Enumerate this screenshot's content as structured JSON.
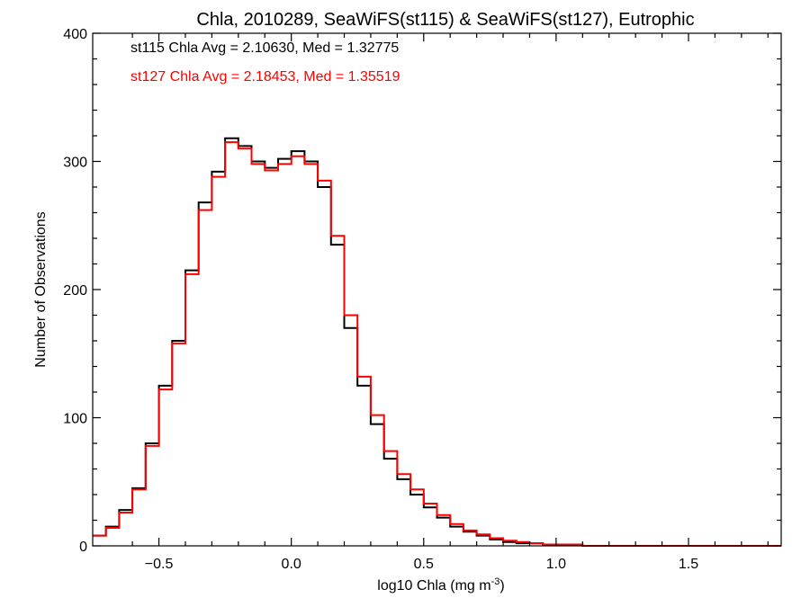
{
  "chart_data": {
    "type": "line",
    "step": true,
    "title": "Chla, 2010289, SeaWiFS(st115) & SeaWiFS(st127), Eutrophic",
    "xlabel": {
      "main": "log10 Chla (mg m",
      "sup": "-3",
      "close": ")"
    },
    "ylabel": "Number of Observations",
    "xlim": [
      -0.75,
      1.85
    ],
    "ylim": [
      0,
      400
    ],
    "x_ticks": [
      {
        "v": -0.5,
        "label": "−0.5"
      },
      {
        "v": 0.0,
        "label": "0.0"
      },
      {
        "v": 0.5,
        "label": "0.5"
      },
      {
        "v": 1.0,
        "label": "1.0"
      },
      {
        "v": 1.5,
        "label": "1.5"
      }
    ],
    "y_ticks": [
      {
        "v": 0,
        "label": "0"
      },
      {
        "v": 100,
        "label": "100"
      },
      {
        "v": 200,
        "label": "200"
      },
      {
        "v": 300,
        "label": "300"
      },
      {
        "v": 400,
        "label": "400"
      }
    ],
    "annotations": [
      {
        "text": "st115 Chla Avg = 2.10630, Med = 1.32775",
        "color": "#000000"
      },
      {
        "text": "st127 Chla Avg = 2.18453, Med = 1.35519",
        "color": "#ff0000"
      }
    ],
    "series": [
      {
        "color": "#000000",
        "x_start": -0.75,
        "bin_width": 0.05,
        "values": [
          8,
          15,
          28,
          45,
          80,
          125,
          160,
          215,
          268,
          292,
          318,
          312,
          300,
          295,
          302,
          308,
          300,
          280,
          235,
          170,
          125,
          95,
          68,
          52,
          40,
          30,
          22,
          15,
          11,
          8,
          5,
          3,
          2,
          2,
          1,
          1,
          1,
          0,
          0,
          0,
          0,
          0,
          0,
          0,
          0,
          0,
          0,
          0,
          0,
          0,
          0,
          0
        ]
      },
      {
        "color": "#ff0000",
        "x_start": -0.75,
        "bin_width": 0.05,
        "values": [
          8,
          14,
          26,
          44,
          78,
          122,
          158,
          212,
          262,
          288,
          315,
          310,
          298,
          293,
          298,
          304,
          298,
          285,
          242,
          180,
          132,
          102,
          74,
          56,
          44,
          33,
          24,
          17,
          12,
          9,
          6,
          4,
          3,
          2,
          1,
          1,
          1,
          0,
          0,
          0,
          0,
          0,
          0,
          0,
          0,
          0,
          0,
          0,
          0,
          0,
          0,
          0
        ]
      }
    ]
  }
}
